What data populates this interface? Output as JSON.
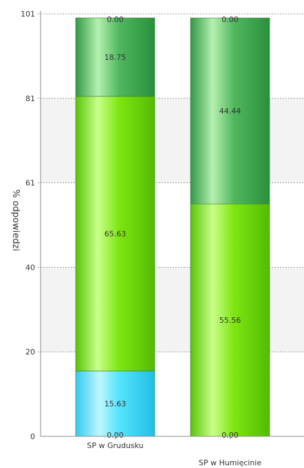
{
  "chart_data": {
    "type": "bar",
    "stacked": true,
    "title": "",
    "xlabel": "",
    "ylabel": "% odpowiedzi",
    "ylim": [
      0,
      101
    ],
    "y_ticks": [
      "0",
      "20",
      "40",
      "61",
      "81",
      "101"
    ],
    "y_tick_values": [
      0,
      20.2,
      40.4,
      60.6,
      80.8,
      101
    ],
    "grid": true,
    "categories": [
      "SP w Grudusku",
      "SP w Humięcinie"
    ],
    "series": [
      {
        "values": [
          0,
          0
        ],
        "labels": [
          "0.00",
          "0.00"
        ],
        "color": "#1e8fc4"
      },
      {
        "values": [
          15.63,
          0
        ],
        "labels": [
          "15.63",
          ""
        ],
        "color": "#3fd8f2"
      },
      {
        "values": [
          65.63,
          55.56
        ],
        "labels": [
          "65.63",
          "55.56"
        ],
        "color": "#6fd80c"
      },
      {
        "values": [
          18.75,
          44.44
        ],
        "labels": [
          "18.75",
          "44.44"
        ],
        "color": "#3aa24a"
      },
      {
        "values": [
          0,
          0
        ],
        "labels": [
          "0.00",
          "0.00"
        ],
        "color": "#2e7d32"
      }
    ]
  }
}
